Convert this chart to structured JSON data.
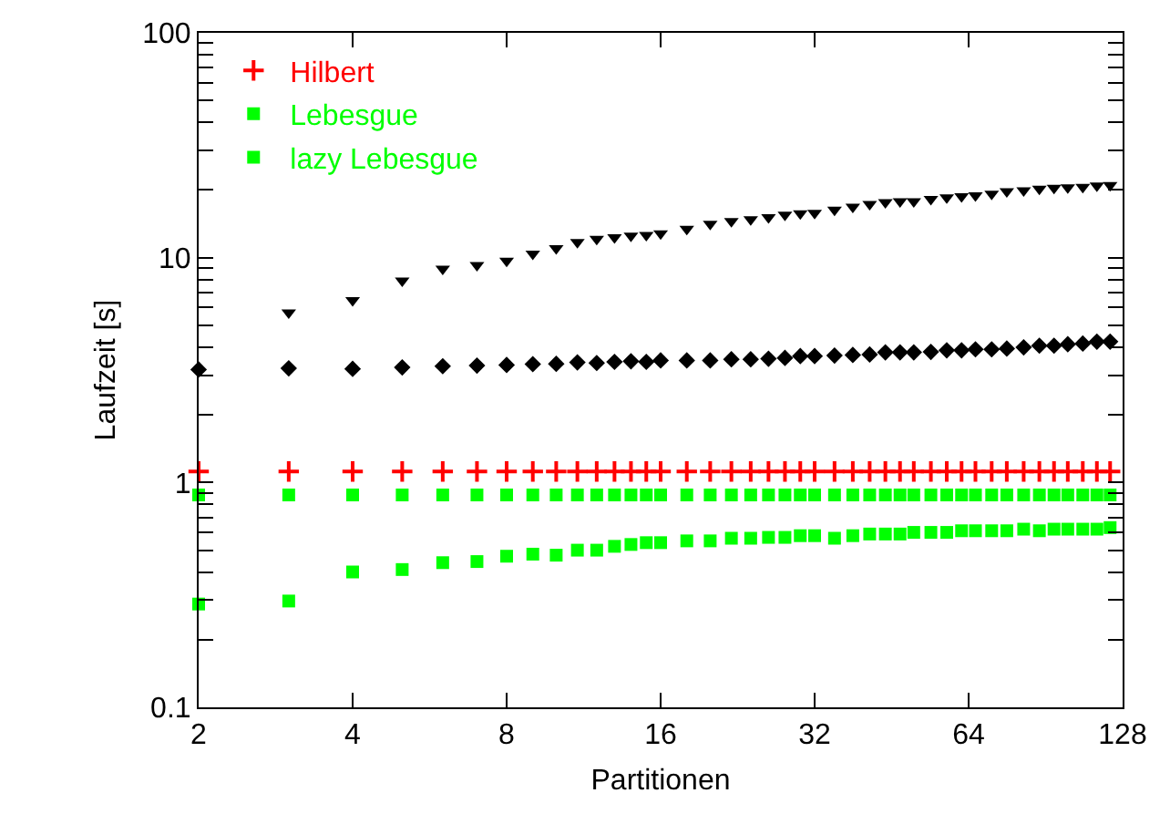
{
  "chart_data": {
    "type": "scatter",
    "xlabel": "Partitionen",
    "ylabel": "Laufzeit [s]",
    "log": "xy",
    "grid": false,
    "legend": "top left",
    "x": [
      2,
      3,
      4,
      5,
      6,
      7,
      8,
      9,
      10,
      11,
      12,
      13,
      14,
      15,
      16,
      18,
      20,
      22,
      24,
      26,
      28,
      30,
      32,
      35,
      38,
      41,
      44,
      47,
      50,
      54,
      58,
      62,
      66,
      71,
      76,
      82,
      88,
      94,
      100,
      107,
      114,
      121
    ],
    "xlim": [
      2,
      128
    ],
    "xticks": [
      2,
      4,
      8,
      16,
      32,
      64,
      128
    ],
    "ylim": [
      0.1,
      100
    ],
    "yticks": [
      0.1,
      {
        "value": 0.2,
        "label": null
      },
      {
        "value": 0.3,
        "label": null
      },
      {
        "value": 0.4,
        "label": null
      },
      {
        "value": 0.5,
        "label": null
      },
      {
        "value": 0.6,
        "label": null
      },
      {
        "value": 0.7,
        "label": null
      },
      {
        "value": 0.8,
        "label": null
      },
      {
        "value": 0.9,
        "label": null
      },
      1,
      {
        "value": 2,
        "label": null
      },
      {
        "value": 3,
        "label": null
      },
      {
        "value": 4,
        "label": null
      },
      {
        "value": 5,
        "label": null
      },
      {
        "value": 6,
        "label": null
      },
      {
        "value": 7,
        "label": null
      },
      {
        "value": 8,
        "label": null
      },
      {
        "value": 9,
        "label": null
      },
      10,
      {
        "value": 20,
        "label": null
      },
      {
        "value": 30,
        "label": null
      },
      {
        "value": 40,
        "label": null
      },
      {
        "value": 50,
        "label": null
      },
      {
        "value": 60,
        "label": null
      },
      {
        "value": 70,
        "label": null
      },
      {
        "value": 80,
        "label": null
      },
      {
        "value": 90,
        "label": null
      },
      100
    ],
    "series": [
      {
        "color": "#000000",
        "marker": "triangle",
        "values": [
          null,
          5.69,
          6.46,
          7.89,
          8.91,
          9.26,
          9.67,
          10.4,
          11.0,
          11.7,
          12.1,
          12.3,
          12.5,
          12.6,
          12.8,
          13.4,
          14.1,
          14.5,
          14.8,
          15.1,
          15.5,
          15.7,
          15.8,
          16.3,
          16.8,
          17.3,
          17.6,
          17.8,
          17.8,
          18.2,
          18.5,
          18.7,
          18.9,
          19.2,
          19.7,
          19.9,
          20.2,
          20.4,
          20.5,
          20.6,
          20.9,
          21.0
        ]
      },
      {
        "color": "#000000",
        "marker": "diamond",
        "values": [
          3.18,
          3.22,
          3.2,
          3.25,
          3.29,
          3.31,
          3.33,
          3.36,
          3.37,
          3.42,
          3.4,
          3.44,
          3.46,
          3.44,
          3.49,
          3.49,
          3.49,
          3.53,
          3.53,
          3.55,
          3.58,
          3.65,
          3.65,
          3.67,
          3.69,
          3.71,
          3.79,
          3.79,
          3.79,
          3.81,
          3.87,
          3.87,
          3.91,
          3.91,
          3.94,
          3.99,
          4.06,
          4.06,
          4.12,
          4.15,
          4.23,
          4.23
        ]
      },
      {
        "name": "Hilbert",
        "color": "#ff0000",
        "marker": "cross",
        "values": [
          1.12,
          1.12,
          1.12,
          1.12,
          1.12,
          1.12,
          1.12,
          1.12,
          1.12,
          1.12,
          1.12,
          1.12,
          1.12,
          1.12,
          1.12,
          1.12,
          1.12,
          1.12,
          1.12,
          1.12,
          1.12,
          1.12,
          1.12,
          1.12,
          1.12,
          1.12,
          1.12,
          1.12,
          1.12,
          1.12,
          1.12,
          1.12,
          1.12,
          1.12,
          1.12,
          1.12,
          1.12,
          1.12,
          1.12,
          1.12,
          1.12,
          1.12
        ]
      },
      {
        "name": "Lebesgue",
        "color": "#00ff00",
        "marker": "square",
        "values": [
          0.88,
          0.88,
          0.88,
          0.88,
          0.88,
          0.88,
          0.88,
          0.88,
          0.88,
          0.88,
          0.88,
          0.88,
          0.88,
          0.88,
          0.88,
          0.88,
          0.88,
          0.88,
          0.88,
          0.88,
          0.88,
          0.88,
          0.88,
          0.88,
          0.88,
          0.88,
          0.88,
          0.88,
          0.88,
          0.88,
          0.88,
          0.88,
          0.88,
          0.88,
          0.88,
          0.88,
          0.88,
          0.88,
          0.88,
          0.88,
          0.88,
          0.88
        ]
      },
      {
        "name": "lazy Lebesgue",
        "color": "#00ff00",
        "marker": "square",
        "values": [
          0.288,
          0.297,
          0.4,
          0.41,
          0.44,
          0.445,
          0.47,
          0.48,
          0.475,
          0.5,
          0.5,
          0.52,
          0.53,
          0.54,
          0.54,
          0.55,
          0.55,
          0.565,
          0.565,
          0.57,
          0.57,
          0.58,
          0.58,
          0.565,
          0.58,
          0.59,
          0.59,
          0.59,
          0.6,
          0.6,
          0.6,
          0.61,
          0.61,
          0.61,
          0.61,
          0.62,
          0.61,
          0.62,
          0.62,
          0.62,
          0.62,
          0.63
        ]
      }
    ]
  }
}
